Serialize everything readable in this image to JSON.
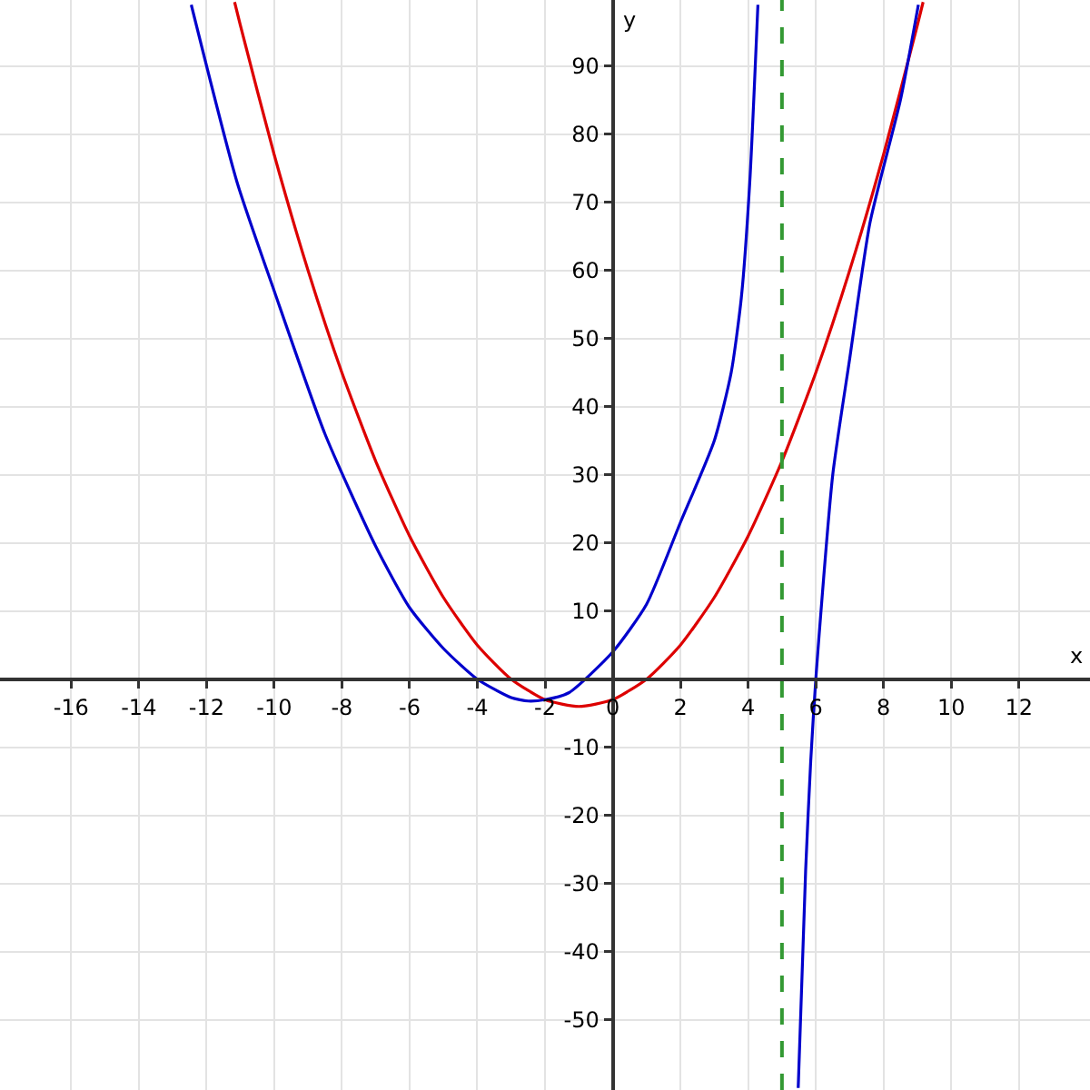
{
  "chart_data": {
    "type": "line",
    "xlabel": "x",
    "ylabel": "y",
    "xlim": [
      -18.1,
      14.1
    ],
    "ylim": [
      -60.3,
      99.7
    ],
    "xticks": [
      -16,
      -14,
      -12,
      -10,
      -8,
      -6,
      -4,
      -2,
      0,
      2,
      4,
      6,
      8,
      10,
      12
    ],
    "yticks": [
      -50,
      -40,
      -30,
      -20,
      -10,
      10,
      20,
      30,
      40,
      50,
      60,
      70,
      80,
      90
    ],
    "grid": true,
    "marker": "none",
    "line_style": "solid",
    "series": [
      {
        "color": "#dd0000",
        "x": [
          -11.17,
          -11,
          -10,
          -9,
          -8,
          -7,
          -6,
          -5,
          -4,
          -3,
          -2,
          -1,
          0,
          1,
          2,
          3,
          4,
          5,
          6,
          7,
          8,
          9,
          9.17
        ],
        "values": [
          99.4,
          96,
          77,
          60,
          45,
          32,
          21,
          12,
          5,
          0,
          -3,
          -4,
          -3,
          0,
          5,
          12,
          21,
          32,
          45,
          60,
          77,
          96,
          99.4
        ]
      },
      {
        "color": "#0000cc",
        "x": [
          -12.45,
          -11.1,
          -10,
          -8.5,
          -7,
          -6,
          -5,
          -4,
          -3,
          -2.5,
          -2,
          -1.3,
          0,
          1,
          2,
          3,
          3.5,
          3.8,
          4.05,
          4.29
        ],
        "values": [
          99,
          73,
          57,
          36,
          19.5,
          10.5,
          4.5,
          0,
          -2.7,
          -3.2,
          -3,
          -2,
          4,
          11,
          23,
          35,
          45,
          56,
          73,
          99
        ]
      },
      {
        "color": "#0000cc",
        "x": [
          5.48,
          5.7,
          5.85,
          6,
          6.5,
          7,
          7.6,
          8.5,
          9.03
        ],
        "values": [
          -60,
          -28,
          -12,
          0,
          30,
          47,
          67,
          85,
          99
        ]
      }
    ],
    "ref_lines": [
      {
        "axis": "x",
        "value": 5,
        "color": "#339933",
        "line_style": "dashed"
      }
    ]
  }
}
